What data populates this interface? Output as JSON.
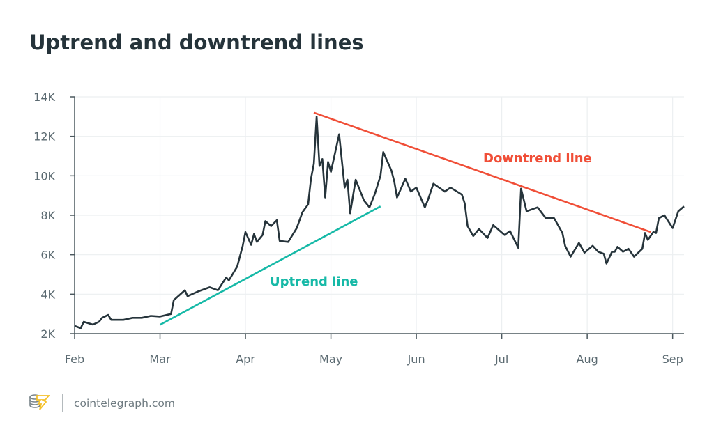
{
  "chart_data": {
    "type": "line",
    "title": "Uptrend and downtrend lines",
    "xlabel": "",
    "ylabel": "",
    "x_ticks": [
      "Feb",
      "Mar",
      "Apr",
      "May",
      "Jun",
      "Jul",
      "Aug",
      "Sep"
    ],
    "y_ticks": [
      "2K",
      "4K",
      "6K",
      "8K",
      "10K",
      "12K",
      "14K"
    ],
    "y_tick_values": [
      2,
      4,
      6,
      8,
      10,
      12,
      14
    ],
    "xlim": [
      "02-01",
      "09-05"
    ],
    "ylim": [
      2,
      14
    ],
    "y_unit": "thousands",
    "grid": true,
    "legend": "none",
    "colors": {
      "price": "#26343b",
      "uptrend": "#16b9a7",
      "downtrend": "#f04e37",
      "grid": "#eceff1",
      "axis": "#4b585e"
    },
    "series": [
      {
        "x": [
          "02-01",
          "02-03",
          "02-04",
          "02-07",
          "02-09",
          "02-10",
          "02-12",
          "02-13",
          "02-17",
          "02-20",
          "02-23",
          "02-26",
          "03-01",
          "03-05",
          "03-06",
          "03-08",
          "03-10",
          "03-11",
          "03-15",
          "03-19",
          "03-22",
          "03-25",
          "03-26",
          "03-29",
          "03-31",
          "04-01",
          "04-03",
          "04-04",
          "04-05",
          "04-07",
          "04-08",
          "04-10",
          "04-12",
          "04-13",
          "04-16",
          "04-19",
          "04-21",
          "04-23",
          "04-24",
          "04-25",
          "04-26",
          "04-27",
          "04-28",
          "04-29",
          "04-30",
          "05-01",
          "05-04",
          "05-06",
          "05-07",
          "05-08",
          "05-10",
          "05-13",
          "05-15",
          "05-17",
          "05-19",
          "05-20",
          "05-23",
          "05-24",
          "05-25",
          "05-28",
          "05-30",
          "06-01",
          "06-04",
          "06-05",
          "06-07",
          "06-11",
          "06-13",
          "06-17",
          "06-18",
          "06-19",
          "06-21",
          "06-23",
          "06-26",
          "06-28",
          "07-02",
          "07-04",
          "07-07",
          "07-08",
          "07-10",
          "07-14",
          "07-17",
          "07-20",
          "07-23",
          "07-24",
          "07-26",
          "07-29",
          "07-31",
          "08-03",
          "08-05",
          "08-07",
          "08-08",
          "08-10",
          "08-11",
          "08-12",
          "08-14",
          "08-16",
          "08-18",
          "08-21",
          "08-22",
          "08-23",
          "08-25",
          "08-26",
          "08-27",
          "08-29",
          "09-01",
          "09-03",
          "09-05"
        ],
        "y": [
          2.39,
          2.28,
          2.6,
          2.46,
          2.6,
          2.8,
          2.95,
          2.7,
          2.7,
          2.8,
          2.8,
          2.9,
          2.87,
          3.0,
          3.7,
          3.95,
          4.2,
          3.9,
          4.15,
          4.35,
          4.2,
          4.85,
          4.7,
          5.4,
          6.45,
          7.15,
          6.5,
          7.05,
          6.65,
          7.0,
          7.7,
          7.45,
          7.75,
          6.7,
          6.65,
          7.35,
          8.15,
          8.55,
          9.85,
          10.6,
          13.0,
          10.5,
          10.85,
          8.9,
          10.7,
          10.2,
          12.1,
          9.4,
          9.8,
          8.1,
          9.8,
          8.75,
          8.4,
          9.1,
          10.0,
          11.2,
          10.25,
          9.7,
          8.9,
          9.85,
          9.2,
          9.4,
          8.4,
          8.75,
          9.6,
          9.2,
          9.4,
          9.05,
          8.6,
          7.45,
          6.95,
          7.3,
          6.85,
          7.5,
          7.0,
          7.2,
          6.35,
          9.35,
          8.2,
          8.4,
          7.85,
          7.85,
          7.1,
          6.45,
          5.9,
          6.6,
          6.1,
          6.45,
          6.15,
          6.05,
          5.55,
          6.15,
          6.15,
          6.4,
          6.15,
          6.3,
          5.9,
          6.3,
          7.1,
          6.75,
          7.15,
          7.1,
          7.85,
          8.0,
          7.35,
          8.2,
          8.45
        ]
      }
    ],
    "annotations": [
      {
        "label": "Uptrend line",
        "from": {
          "x": "03-01",
          "y": 2.45
        },
        "to": {
          "x": "05-19",
          "y": 8.45
        }
      },
      {
        "label": "Downtrend line",
        "from": {
          "x": "04-25",
          "y": 13.2
        },
        "to": {
          "x": "08-24",
          "y": 7.15
        }
      }
    ]
  },
  "footer": {
    "brand": "cointelegraph.com",
    "logo_icon": "coin-stack-lightning-icon"
  }
}
